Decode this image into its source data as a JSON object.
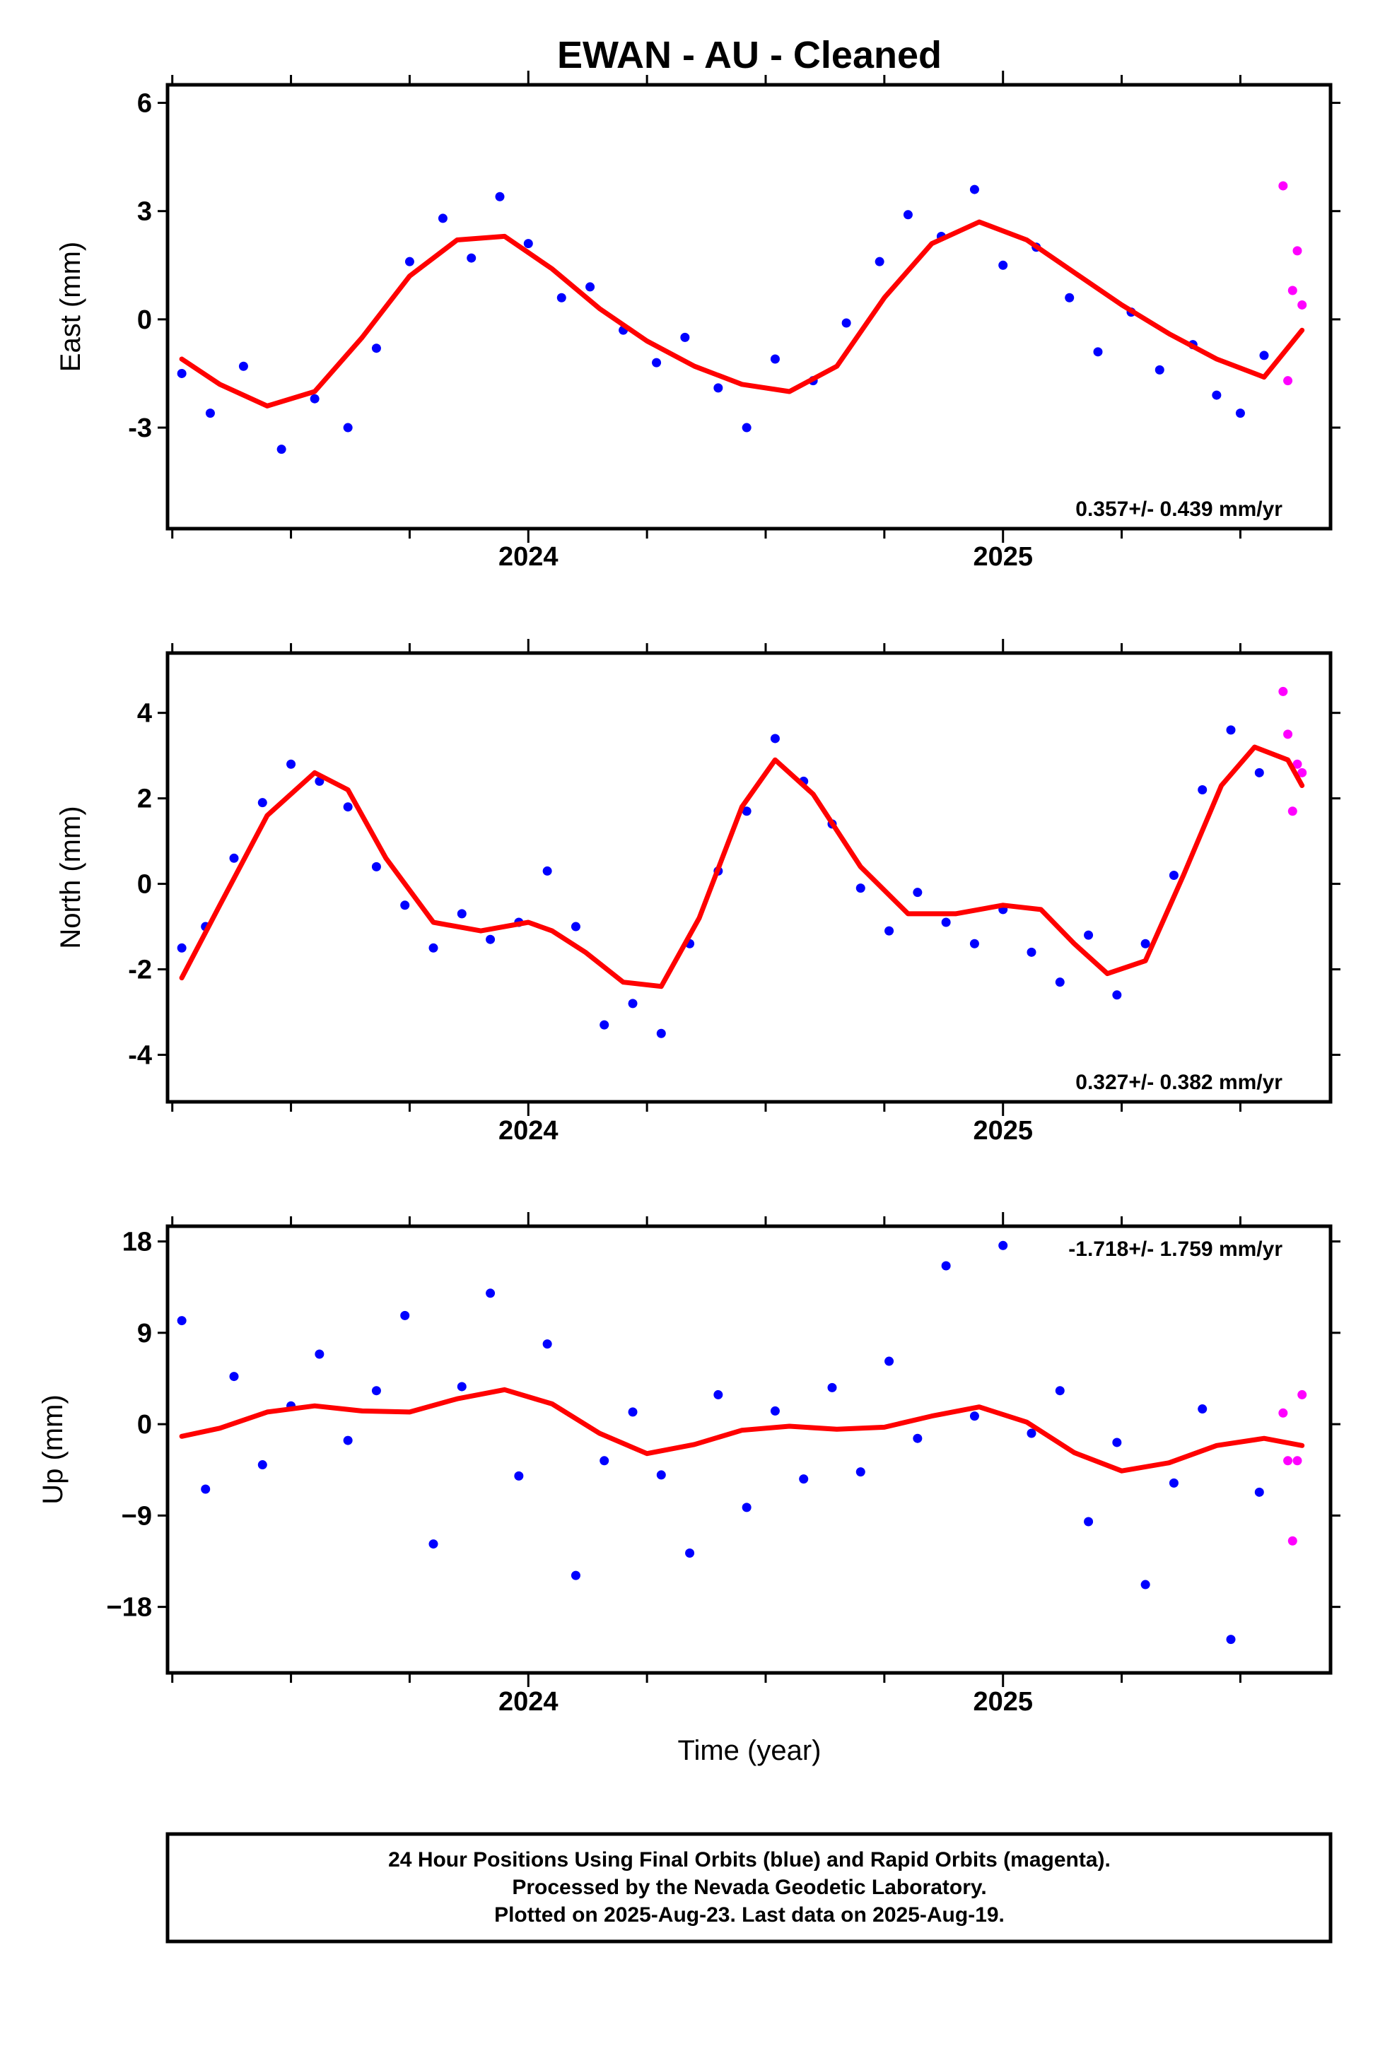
{
  "figure": {
    "title": "EWAN  - AU - Cleaned",
    "xlabel": "Time (year)",
    "footer": [
      "24 Hour Positions Using Final Orbits (blue) and Rapid Orbits (magenta).",
      "Processed by the Nevada Geodetic Laboratory.",
      "Plotted on 2025-Aug-23. Last data on 2025-Aug-19."
    ]
  },
  "chart_data": [
    {
      "type": "scatter",
      "ylabel": "East (mm)",
      "rate_label": "0.357+/- 0.439 mm/yr",
      "rate_position": "bottom-right",
      "xlim": [
        2023.24,
        2025.69
      ],
      "ylim": [
        -5.8,
        6.5
      ],
      "yticks": [
        -3,
        0,
        3,
        6
      ],
      "xtick_labels": [
        "2024",
        "2025"
      ],
      "grid": false,
      "colors": {
        "final": "#0000ff",
        "rapid": "#ff00ff",
        "fit": "#ff0000"
      },
      "series": [
        {
          "name": "Final Orbits (blue)",
          "x": [
            2023.27,
            2023.33,
            2023.4,
            2023.48,
            2023.55,
            2023.62,
            2023.68,
            2023.75,
            2023.82,
            2023.88,
            2023.94,
            2024.0,
            2024.07,
            2024.13,
            2024.2,
            2024.27,
            2024.33,
            2024.4,
            2024.46,
            2024.52,
            2024.6,
            2024.67,
            2024.74,
            2024.8,
            2024.87,
            2024.94,
            2025.0,
            2025.07,
            2025.14,
            2025.2,
            2025.27,
            2025.33,
            2025.4,
            2025.45,
            2025.5,
            2025.55
          ],
          "y": [
            -1.5,
            -2.6,
            -1.3,
            -3.6,
            -2.2,
            -3.0,
            -0.8,
            1.6,
            2.8,
            1.7,
            3.4,
            2.1,
            0.6,
            0.9,
            -0.3,
            -1.2,
            -0.5,
            -1.9,
            -3.0,
            -1.1,
            -1.7,
            -0.1,
            1.6,
            2.9,
            2.3,
            3.6,
            1.5,
            2.0,
            0.6,
            -0.9,
            0.2,
            -1.4,
            -0.7,
            -2.1,
            -2.6,
            -1.0
          ]
        },
        {
          "name": "Rapid Orbits (magenta)",
          "x": [
            2025.59,
            2025.6,
            2025.61,
            2025.62,
            2025.63
          ],
          "y": [
            3.7,
            -1.7,
            0.8,
            1.9,
            0.4
          ]
        },
        {
          "name": "fit",
          "x": [
            2023.27,
            2023.35,
            2023.45,
            2023.55,
            2023.65,
            2023.75,
            2023.85,
            2023.95,
            2024.05,
            2024.15,
            2024.25,
            2024.35,
            2024.45,
            2024.55,
            2024.65,
            2024.75,
            2024.85,
            2024.95,
            2025.05,
            2025.15,
            2025.25,
            2025.35,
            2025.45,
            2025.55,
            2025.63
          ],
          "y": [
            -1.1,
            -1.8,
            -2.4,
            -2.0,
            -0.5,
            1.2,
            2.2,
            2.3,
            1.4,
            0.3,
            -0.6,
            -1.3,
            -1.8,
            -2.0,
            -1.3,
            0.6,
            2.1,
            2.7,
            2.2,
            1.3,
            0.4,
            -0.4,
            -1.1,
            -1.6,
            -0.3
          ]
        }
      ]
    },
    {
      "type": "scatter",
      "ylabel": "North (mm)",
      "rate_label": "0.327+/- 0.382 mm/yr",
      "rate_position": "bottom-right",
      "xlim": [
        2023.24,
        2025.69
      ],
      "ylim": [
        -5.1,
        5.4
      ],
      "yticks": [
        -4,
        -2,
        0,
        2,
        4
      ],
      "xtick_labels": [
        "2024",
        "2025"
      ],
      "grid": false,
      "colors": {
        "final": "#0000ff",
        "rapid": "#ff00ff",
        "fit": "#ff0000"
      },
      "series": [
        {
          "name": "Final Orbits (blue)",
          "x": [
            2023.27,
            2023.32,
            2023.38,
            2023.44,
            2023.5,
            2023.56,
            2023.62,
            2023.68,
            2023.74,
            2023.8,
            2023.86,
            2023.92,
            2023.98,
            2024.04,
            2024.1,
            2024.16,
            2024.22,
            2024.28,
            2024.34,
            2024.4,
            2024.46,
            2024.52,
            2024.58,
            2024.64,
            2024.7,
            2024.76,
            2024.82,
            2024.88,
            2024.94,
            2025.0,
            2025.06,
            2025.12,
            2025.18,
            2025.24,
            2025.3,
            2025.36,
            2025.42,
            2025.48,
            2025.54
          ],
          "y": [
            -1.5,
            -1.0,
            0.6,
            1.9,
            2.8,
            2.4,
            1.8,
            0.4,
            -0.5,
            -1.5,
            -0.7,
            -1.3,
            -0.9,
            0.3,
            -1.0,
            -3.3,
            -2.8,
            -3.5,
            -1.4,
            0.3,
            1.7,
            3.4,
            2.4,
            1.4,
            -0.1,
            -1.1,
            -0.2,
            -0.9,
            -1.4,
            -0.6,
            -1.6,
            -2.3,
            -1.2,
            -2.6,
            -1.4,
            0.2,
            2.2,
            3.6,
            2.6
          ]
        },
        {
          "name": "Rapid Orbits (magenta)",
          "x": [
            2025.59,
            2025.6,
            2025.61,
            2025.62,
            2025.63
          ],
          "y": [
            4.5,
            3.5,
            1.7,
            2.8,
            2.6
          ]
        },
        {
          "name": "fit",
          "x": [
            2023.27,
            2023.35,
            2023.45,
            2023.55,
            2023.62,
            2023.7,
            2023.8,
            2023.9,
            2024.0,
            2024.05,
            2024.12,
            2024.2,
            2024.28,
            2024.36,
            2024.45,
            2024.52,
            2024.6,
            2024.7,
            2024.8,
            2024.9,
            2025.0,
            2025.08,
            2025.15,
            2025.22,
            2025.3,
            2025.38,
            2025.46,
            2025.53,
            2025.6,
            2025.63
          ],
          "y": [
            -2.2,
            -0.5,
            1.6,
            2.6,
            2.2,
            0.6,
            -0.9,
            -1.1,
            -0.9,
            -1.1,
            -1.6,
            -2.3,
            -2.4,
            -0.8,
            1.8,
            2.9,
            2.1,
            0.4,
            -0.7,
            -0.7,
            -0.5,
            -0.6,
            -1.4,
            -2.1,
            -1.8,
            0.2,
            2.3,
            3.2,
            2.9,
            2.3
          ]
        }
      ]
    },
    {
      "type": "scatter",
      "ylabel": "Up (mm)",
      "rate_label": "-1.718+/- 1.759 mm/yr",
      "rate_position": "top-right",
      "xlim": [
        2023.24,
        2025.69
      ],
      "ylim": [
        -24.5,
        19.5
      ],
      "yticks": [
        -18,
        -9,
        0,
        9,
        18
      ],
      "ytick_labels": [
        "−18",
        "−9",
        "0",
        "9",
        "18"
      ],
      "xtick_labels": [
        "2024",
        "2025"
      ],
      "grid": false,
      "colors": {
        "final": "#0000ff",
        "rapid": "#ff00ff",
        "fit": "#ff0000"
      },
      "series": [
        {
          "name": "Final Orbits (blue)",
          "x": [
            2023.27,
            2023.32,
            2023.38,
            2023.44,
            2023.5,
            2023.56,
            2023.62,
            2023.68,
            2023.74,
            2023.8,
            2023.86,
            2023.92,
            2023.98,
            2024.04,
            2024.1,
            2024.16,
            2024.22,
            2024.28,
            2024.34,
            2024.4,
            2024.46,
            2024.52,
            2024.58,
            2024.64,
            2024.7,
            2024.76,
            2024.82,
            2024.88,
            2024.94,
            2025.0,
            2025.06,
            2025.12,
            2025.18,
            2025.24,
            2025.3,
            2025.36,
            2025.42,
            2025.48,
            2025.54
          ],
          "y": [
            10.2,
            -6.4,
            4.7,
            -4.0,
            1.8,
            6.9,
            -1.6,
            3.3,
            10.7,
            -11.8,
            3.7,
            12.9,
            -5.1,
            7.9,
            -14.9,
            -3.6,
            1.2,
            -5.0,
            -12.7,
            2.9,
            -8.2,
            1.3,
            -5.4,
            3.6,
            -4.7,
            6.2,
            -1.4,
            15.6,
            0.8,
            17.6,
            -0.9,
            3.3,
            -9.6,
            -1.8,
            -15.8,
            -5.8,
            1.5,
            -21.2,
            -6.7
          ]
        },
        {
          "name": "Rapid Orbits (magenta)",
          "x": [
            2025.59,
            2025.6,
            2025.61,
            2025.62,
            2025.63
          ],
          "y": [
            1.1,
            -3.6,
            -11.5,
            -3.6,
            2.9
          ]
        },
        {
          "name": "fit",
          "x": [
            2023.27,
            2023.35,
            2023.45,
            2023.55,
            2023.65,
            2023.75,
            2023.85,
            2023.95,
            2024.05,
            2024.15,
            2024.25,
            2024.35,
            2024.45,
            2024.55,
            2024.65,
            2024.75,
            2024.85,
            2024.95,
            2025.05,
            2025.15,
            2025.25,
            2025.35,
            2025.45,
            2025.55,
            2025.63
          ],
          "y": [
            -1.2,
            -0.4,
            1.2,
            1.8,
            1.3,
            1.2,
            2.5,
            3.4,
            2.0,
            -0.9,
            -2.9,
            -2.0,
            -0.6,
            -0.2,
            -0.5,
            -0.3,
            0.8,
            1.7,
            0.2,
            -2.8,
            -4.6,
            -3.8,
            -2.1,
            -1.4,
            -2.1
          ]
        }
      ]
    }
  ]
}
